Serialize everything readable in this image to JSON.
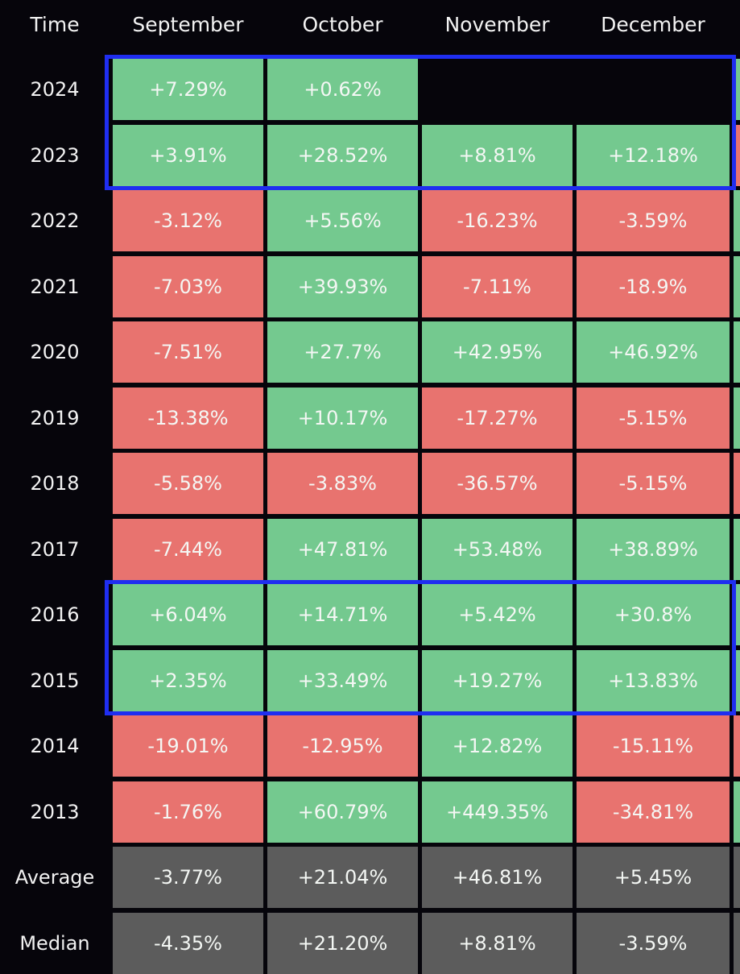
{
  "colors": {
    "positive": "#74c98f",
    "negative": "#e8736f",
    "summary": "#5c5c5c",
    "highlight": "#1f2ef0",
    "background": "#06050b"
  },
  "chart_data": {
    "type": "table",
    "title": "",
    "row_header": "Time",
    "columns": [
      "September",
      "October",
      "November",
      "December"
    ],
    "rows": [
      {
        "label": "2024",
        "values": [
          "+7.29%",
          "+0.62%",
          "",
          ""
        ]
      },
      {
        "label": "2023",
        "values": [
          "+3.91%",
          "+28.52%",
          "+8.81%",
          "+12.18%"
        ]
      },
      {
        "label": "2022",
        "values": [
          "-3.12%",
          "+5.56%",
          "-16.23%",
          "-3.59%"
        ]
      },
      {
        "label": "2021",
        "values": [
          "-7.03%",
          "+39.93%",
          "-7.11%",
          "-18.9%"
        ]
      },
      {
        "label": "2020",
        "values": [
          "-7.51%",
          "+27.7%",
          "+42.95%",
          "+46.92%"
        ]
      },
      {
        "label": "2019",
        "values": [
          "-13.38%",
          "+10.17%",
          "-17.27%",
          "-5.15%"
        ]
      },
      {
        "label": "2018",
        "values": [
          "-5.58%",
          "-3.83%",
          "-36.57%",
          "-5.15%"
        ]
      },
      {
        "label": "2017",
        "values": [
          "-7.44%",
          "+47.81%",
          "+53.48%",
          "+38.89%"
        ]
      },
      {
        "label": "2016",
        "values": [
          "+6.04%",
          "+14.71%",
          "+5.42%",
          "+30.8%"
        ]
      },
      {
        "label": "2015",
        "values": [
          "+2.35%",
          "+33.49%",
          "+19.27%",
          "+13.83%"
        ]
      },
      {
        "label": "2014",
        "values": [
          "-19.01%",
          "-12.95%",
          "+12.82%",
          "-15.11%"
        ]
      },
      {
        "label": "2013",
        "values": [
          "-1.76%",
          "+60.79%",
          "+449.35%",
          "-34.81%"
        ]
      },
      {
        "label": "Average",
        "values": [
          "-3.77%",
          "+21.04%",
          "+46.81%",
          "+5.45%"
        ],
        "summary": true
      },
      {
        "label": "Median",
        "values": [
          "-4.35%",
          "+21.20%",
          "+8.81%",
          "-3.59%"
        ],
        "summary": true
      }
    ],
    "highlighted_rows": [
      [
        "2024",
        "2023"
      ],
      [
        "2016",
        "2015"
      ]
    ],
    "partial_next_column": [
      "positive",
      "negative",
      "positive",
      "positive",
      "positive",
      "positive",
      "negative",
      "positive",
      "positive",
      "positive",
      "negative",
      "positive",
      "summary",
      "summary"
    ]
  }
}
